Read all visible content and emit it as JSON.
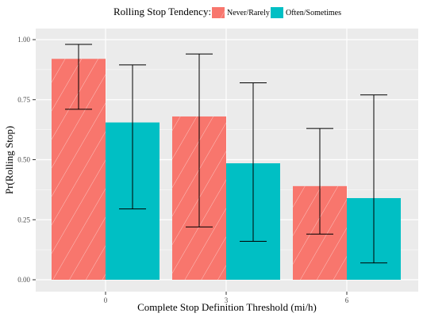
{
  "chart_data": {
    "type": "bar",
    "categories": [
      "0",
      "3",
      "6"
    ],
    "series": [
      {
        "name": "Never/Rarely",
        "values": [
          0.92,
          0.68,
          0.39
        ],
        "ci_lower": [
          0.71,
          0.22,
          0.19
        ],
        "ci_upper": [
          0.98,
          0.94,
          0.63
        ],
        "color": "#F8766D",
        "hatched": true
      },
      {
        "name": "Often/Sometimes",
        "values": [
          0.655,
          0.485,
          0.34
        ],
        "ci_lower": [
          0.295,
          0.16,
          0.07
        ],
        "ci_upper": [
          0.895,
          0.82,
          0.77
        ],
        "color": "#00BFC4",
        "hatched": false
      }
    ],
    "xlabel": "Complete Stop Definition Threshold (mi/h)",
    "ylabel": "Pr(Rolling Stop)",
    "ylim": [
      0,
      1.0
    ],
    "yticks": [
      "0.00",
      "0.25",
      "0.50",
      "0.75",
      "1.00"
    ],
    "ytick_values": [
      0,
      0.25,
      0.5,
      0.75,
      1.0
    ],
    "grid": true,
    "legend": {
      "title": "Rolling Stop Tendency:",
      "position": "top"
    },
    "panel_background": "#EBEBEB",
    "gridline_color": "#FFFFFF",
    "errorbar_color": "#000000"
  }
}
